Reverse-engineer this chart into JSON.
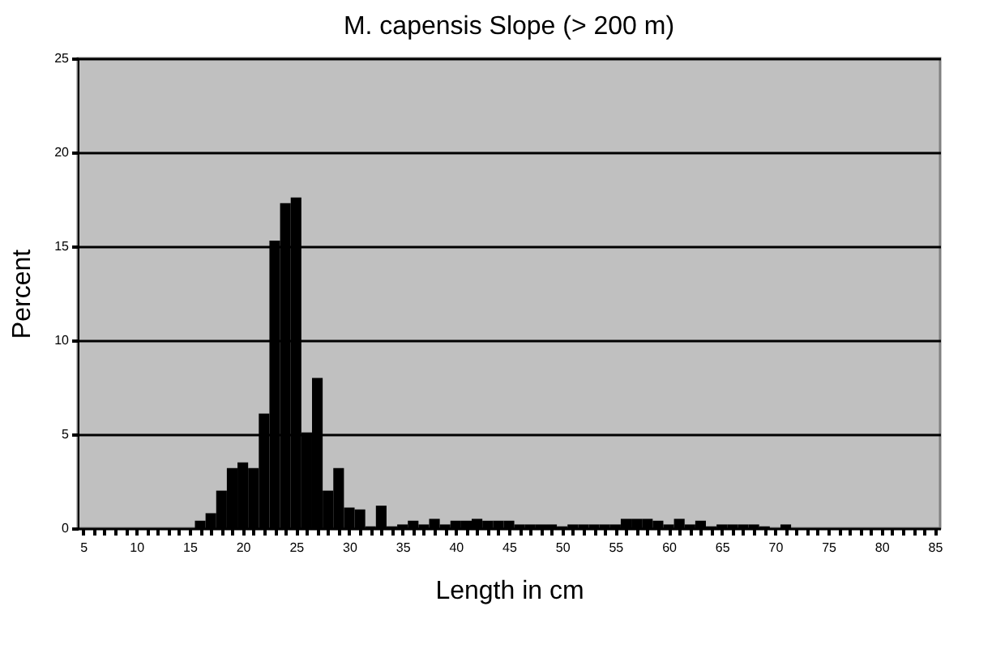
{
  "chart_data": {
    "type": "histogram",
    "title": "M. capensis Slope (> 200 m)",
    "xlabel": "Length in cm",
    "ylabel": "Percent",
    "bins": [
      4.5,
      5.5,
      6.5,
      7.5,
      8.5,
      9.5,
      10.5,
      11.5,
      12.5,
      13.5,
      14.5,
      15.5,
      16.5,
      17.5,
      18.5,
      19.5,
      20.5,
      21.5,
      22.5,
      23.5,
      24.5,
      25.5,
      26.5,
      27.5,
      28.5,
      29.5,
      30.5,
      31.5,
      32.5,
      33.5,
      34.5,
      35.5,
      36.5,
      37.5,
      38.5,
      39.5,
      40.5,
      41.5,
      42.5,
      43.5,
      44.5,
      45.5,
      46.5,
      47.5,
      48.5,
      49.5,
      50.5,
      51.5,
      52.5,
      53.5,
      54.5,
      55.5,
      56.5,
      57.5,
      58.5,
      59.5,
      60.5,
      61.5,
      62.5,
      63.5,
      64.5,
      65.5,
      66.5,
      67.5,
      68.5,
      69.5,
      70.5,
      71.5,
      72.5,
      73.5,
      74.5,
      75.5,
      76.5,
      77.5,
      78.5,
      79.5,
      80.5,
      81.5,
      82.5,
      83.5,
      84.5,
      85.5
    ],
    "values": [
      0,
      0,
      0,
      0,
      0,
      0,
      0,
      0,
      0,
      0,
      0,
      0.4,
      0.8,
      2.0,
      3.2,
      3.5,
      3.2,
      6.1,
      15.3,
      17.3,
      17.6,
      5.1,
      8.0,
      2.0,
      3.2,
      1.1,
      1.0,
      0.1,
      1.2,
      0.1,
      0.2,
      0.4,
      0.2,
      0.5,
      0.2,
      0.4,
      0.4,
      0.5,
      0.4,
      0.4,
      0.4,
      0.2,
      0.2,
      0.2,
      0.2,
      0.1,
      0.2,
      0.2,
      0.2,
      0.2,
      0.2,
      0.5,
      0.5,
      0.5,
      0.4,
      0.2,
      0.5,
      0.2,
      0.4,
      0.1,
      0.2,
      0.2,
      0.2,
      0.2,
      0.1,
      0,
      0.2,
      0,
      0,
      0,
      0,
      0,
      0,
      0,
      0,
      0,
      0,
      0,
      0,
      0,
      0
    ],
    "color": "#000000",
    "xlim": [
      4.5,
      85.5
    ],
    "xticks": [
      5,
      {
        "value": 6,
        "label": null
      },
      {
        "value": 7,
        "label": null
      },
      {
        "value": 8,
        "label": null
      },
      {
        "value": 9,
        "label": null
      },
      10,
      {
        "value": 11,
        "label": null
      },
      {
        "value": 12,
        "label": null
      },
      {
        "value": 13,
        "label": null
      },
      {
        "value": 14,
        "label": null
      },
      15,
      {
        "value": 16,
        "label": null
      },
      {
        "value": 17,
        "label": null
      },
      {
        "value": 18,
        "label": null
      },
      {
        "value": 19,
        "label": null
      },
      20,
      {
        "value": 21,
        "label": null
      },
      {
        "value": 22,
        "label": null
      },
      {
        "value": 23,
        "label": null
      },
      {
        "value": 24,
        "label": null
      },
      25,
      {
        "value": 26,
        "label": null
      },
      {
        "value": 27,
        "label": null
      },
      {
        "value": 28,
        "label": null
      },
      {
        "value": 29,
        "label": null
      },
      30,
      {
        "value": 31,
        "label": null
      },
      {
        "value": 32,
        "label": null
      },
      {
        "value": 33,
        "label": null
      },
      {
        "value": 34,
        "label": null
      },
      35,
      {
        "value": 36,
        "label": null
      },
      {
        "value": 37,
        "label": null
      },
      {
        "value": 38,
        "label": null
      },
      {
        "value": 39,
        "label": null
      },
      40,
      {
        "value": 41,
        "label": null
      },
      {
        "value": 42,
        "label": null
      },
      {
        "value": 43,
        "label": null
      },
      {
        "value": 44,
        "label": null
      },
      45,
      {
        "value": 46,
        "label": null
      },
      {
        "value": 47,
        "label": null
      },
      {
        "value": 48,
        "label": null
      },
      {
        "value": 49,
        "label": null
      },
      50,
      {
        "value": 51,
        "label": null
      },
      {
        "value": 52,
        "label": null
      },
      {
        "value": 53,
        "label": null
      },
      {
        "value": 54,
        "label": null
      },
      55,
      {
        "value": 56,
        "label": null
      },
      {
        "value": 57,
        "label": null
      },
      {
        "value": 58,
        "label": null
      },
      {
        "value": 59,
        "label": null
      },
      60,
      {
        "value": 61,
        "label": null
      },
      {
        "value": 62,
        "label": null
      },
      {
        "value": 63,
        "label": null
      },
      {
        "value": 64,
        "label": null
      },
      65,
      {
        "value": 66,
        "label": null
      },
      {
        "value": 67,
        "label": null
      },
      {
        "value": 68,
        "label": null
      },
      {
        "value": 69,
        "label": null
      },
      70,
      {
        "value": 71,
        "label": null
      },
      {
        "value": 72,
        "label": null
      },
      {
        "value": 73,
        "label": null
      },
      {
        "value": 74,
        "label": null
      },
      75,
      {
        "value": 76,
        "label": null
      },
      {
        "value": 77,
        "label": null
      },
      {
        "value": 78,
        "label": null
      },
      {
        "value": 79,
        "label": null
      },
      80,
      {
        "value": 81,
        "label": null
      },
      {
        "value": 82,
        "label": null
      },
      {
        "value": 83,
        "label": null
      },
      {
        "value": 84,
        "label": null
      },
      85
    ],
    "ylim": [
      0,
      25
    ],
    "yticks": [
      0,
      5,
      10,
      15,
      20,
      25
    ],
    "grid": "y"
  }
}
